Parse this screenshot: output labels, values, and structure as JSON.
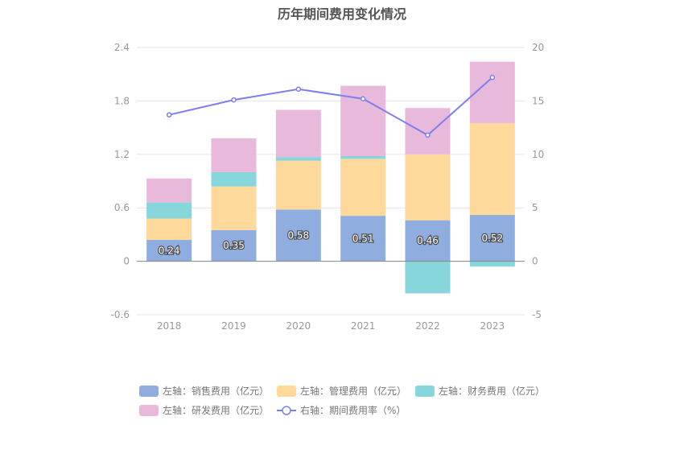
{
  "title": "历年期间费用变化情况",
  "chart_data": {
    "type": "bar",
    "stacked": true,
    "title": "历年期间费用变化情况",
    "categories": [
      "2018",
      "2019",
      "2020",
      "2021",
      "2022",
      "2023"
    ],
    "left_axis": {
      "min": -0.6,
      "max": 2.4,
      "ticks": [
        -0.6,
        0,
        0.6,
        1.2,
        1.8,
        2.4
      ]
    },
    "right_axis": {
      "min": -5,
      "max": 20,
      "ticks": [
        -5,
        0,
        5,
        10,
        15,
        20
      ]
    },
    "grid": true,
    "legend_position": "bottom",
    "series": [
      {
        "name": "左轴：销售费用（亿元）",
        "type": "bar",
        "axis": "left",
        "color": "#8fadde",
        "values": [
          0.24,
          0.35,
          0.58,
          0.51,
          0.46,
          0.52
        ],
        "labels": [
          "0.24",
          "0.35",
          "0.58",
          "0.51",
          "0.46",
          "0.52"
        ]
      },
      {
        "name": "左轴：管理费用（亿元）",
        "type": "bar",
        "axis": "left",
        "color": "#ffd89b",
        "values": [
          0.24,
          0.49,
          0.55,
          0.64,
          0.74,
          1.03
        ]
      },
      {
        "name": "左轴：财务费用（亿元）",
        "type": "bar",
        "axis": "left",
        "color": "#86d6dc",
        "values": [
          0.18,
          0.16,
          0.04,
          0.03,
          -0.36,
          -0.06
        ]
      },
      {
        "name": "左轴：研发费用（亿元）",
        "type": "bar",
        "axis": "left",
        "color": "#e8b9db",
        "values": [
          0.27,
          0.38,
          0.53,
          0.79,
          0.52,
          0.69
        ]
      },
      {
        "name": "右轴：期间费用率（%）",
        "type": "line",
        "axis": "right",
        "color": "#7b7ff0",
        "values": [
          13.7,
          15.1,
          16.1,
          15.2,
          11.8,
          17.2
        ]
      }
    ]
  }
}
